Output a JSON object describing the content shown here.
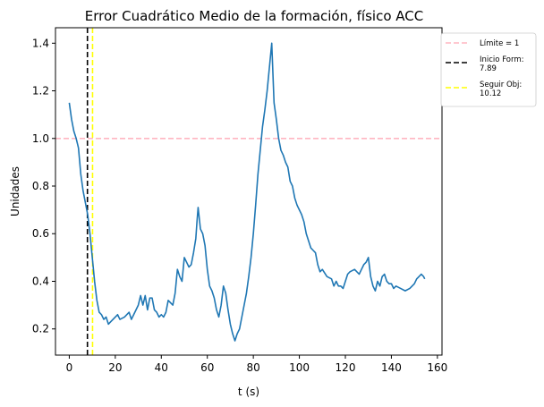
{
  "chart_data": {
    "type": "line",
    "title": "Error Cuadrático Medio de la formación, físico ACC",
    "xlabel": "t (s)",
    "ylabel": "Unidades",
    "xlim": [
      -6,
      162
    ],
    "ylim": [
      0.09,
      1.465
    ],
    "xticks": [
      0,
      20,
      40,
      60,
      80,
      100,
      120,
      140,
      160
    ],
    "yticks": [
      0.2,
      0.4,
      0.6,
      0.8,
      1.0,
      1.2,
      1.4
    ],
    "xtick_labels": [
      "0",
      "20",
      "40",
      "60",
      "80",
      "100",
      "120",
      "140",
      "160"
    ],
    "ytick_labels": [
      "0.2",
      "0.4",
      "0.6",
      "0.8",
      "1.0",
      "1.2",
      "1.4"
    ],
    "grid": false,
    "legend_position": "outside-right-top",
    "series": [
      {
        "color": "#1f77b4",
        "points": [
          [
            0,
            1.15
          ],
          [
            1,
            1.08
          ],
          [
            2,
            1.03
          ],
          [
            3,
            1.0
          ],
          [
            4,
            0.96
          ],
          [
            5,
            0.85
          ],
          [
            6,
            0.78
          ],
          [
            7,
            0.73
          ],
          [
            8,
            0.68
          ],
          [
            9,
            0.6
          ],
          [
            10,
            0.5
          ],
          [
            11,
            0.4
          ],
          [
            12,
            0.32
          ],
          [
            13,
            0.27
          ],
          [
            14,
            0.26
          ],
          [
            15,
            0.24
          ],
          [
            16,
            0.25
          ],
          [
            17,
            0.22
          ],
          [
            18,
            0.23
          ],
          [
            19,
            0.24
          ],
          [
            20,
            0.25
          ],
          [
            21,
            0.26
          ],
          [
            22,
            0.24
          ],
          [
            24,
            0.25
          ],
          [
            26,
            0.27
          ],
          [
            27,
            0.24
          ],
          [
            28,
            0.26
          ],
          [
            30,
            0.3
          ],
          [
            31,
            0.34
          ],
          [
            32,
            0.3
          ],
          [
            33,
            0.34
          ],
          [
            34,
            0.28
          ],
          [
            35,
            0.33
          ],
          [
            36,
            0.33
          ],
          [
            37,
            0.28
          ],
          [
            38,
            0.27
          ],
          [
            39,
            0.25
          ],
          [
            40,
            0.26
          ],
          [
            41,
            0.25
          ],
          [
            42,
            0.27
          ],
          [
            43,
            0.32
          ],
          [
            44,
            0.31
          ],
          [
            45,
            0.3
          ],
          [
            46,
            0.35
          ],
          [
            47,
            0.45
          ],
          [
            48,
            0.42
          ],
          [
            49,
            0.4
          ],
          [
            50,
            0.5
          ],
          [
            51,
            0.48
          ],
          [
            52,
            0.46
          ],
          [
            53,
            0.47
          ],
          [
            54,
            0.52
          ],
          [
            55,
            0.58
          ],
          [
            55.5,
            0.65
          ],
          [
            56,
            0.71
          ],
          [
            57,
            0.62
          ],
          [
            58,
            0.6
          ],
          [
            59,
            0.55
          ],
          [
            60,
            0.45
          ],
          [
            61,
            0.38
          ],
          [
            62,
            0.36
          ],
          [
            63,
            0.33
          ],
          [
            64,
            0.28
          ],
          [
            65,
            0.25
          ],
          [
            66,
            0.3
          ],
          [
            67,
            0.38
          ],
          [
            68,
            0.35
          ],
          [
            69,
            0.28
          ],
          [
            70,
            0.22
          ],
          [
            71,
            0.18
          ],
          [
            72,
            0.15
          ],
          [
            73,
            0.18
          ],
          [
            74,
            0.2
          ],
          [
            75,
            0.25
          ],
          [
            76,
            0.3
          ],
          [
            77,
            0.35
          ],
          [
            78,
            0.42
          ],
          [
            79,
            0.5
          ],
          [
            80,
            0.6
          ],
          [
            81,
            0.72
          ],
          [
            82,
            0.85
          ],
          [
            83,
            0.95
          ],
          [
            84,
            1.05
          ],
          [
            85,
            1.12
          ],
          [
            86,
            1.2
          ],
          [
            87,
            1.3
          ],
          [
            88,
            1.4
          ],
          [
            89,
            1.15
          ],
          [
            90,
            1.08
          ],
          [
            91,
            1.0
          ],
          [
            92,
            0.95
          ],
          [
            93,
            0.93
          ],
          [
            94,
            0.9
          ],
          [
            95,
            0.88
          ],
          [
            96,
            0.82
          ],
          [
            97,
            0.8
          ],
          [
            98,
            0.75
          ],
          [
            99,
            0.72
          ],
          [
            100,
            0.7
          ],
          [
            101,
            0.68
          ],
          [
            102,
            0.65
          ],
          [
            103,
            0.6
          ],
          [
            104,
            0.57
          ],
          [
            105,
            0.54
          ],
          [
            106,
            0.53
          ],
          [
            107,
            0.52
          ],
          [
            108,
            0.47
          ],
          [
            109,
            0.44
          ],
          [
            110,
            0.45
          ],
          [
            112,
            0.42
          ],
          [
            114,
            0.41
          ],
          [
            115,
            0.38
          ],
          [
            116,
            0.4
          ],
          [
            117,
            0.38
          ],
          [
            118,
            0.38
          ],
          [
            119,
            0.37
          ],
          [
            120,
            0.4
          ],
          [
            121,
            0.43
          ],
          [
            122,
            0.44
          ],
          [
            124,
            0.45
          ],
          [
            126,
            0.43
          ],
          [
            127,
            0.45
          ],
          [
            128,
            0.47
          ],
          [
            129,
            0.48
          ],
          [
            130,
            0.5
          ],
          [
            131,
            0.42
          ],
          [
            132,
            0.38
          ],
          [
            133,
            0.36
          ],
          [
            134,
            0.4
          ],
          [
            135,
            0.38
          ],
          [
            136,
            0.42
          ],
          [
            137,
            0.43
          ],
          [
            138,
            0.4
          ],
          [
            139,
            0.39
          ],
          [
            140,
            0.39
          ],
          [
            141,
            0.37
          ],
          [
            142,
            0.38
          ],
          [
            144,
            0.37
          ],
          [
            146,
            0.36
          ],
          [
            148,
            0.37
          ],
          [
            150,
            0.39
          ],
          [
            151,
            0.41
          ],
          [
            152,
            0.42
          ],
          [
            153,
            0.43
          ],
          [
            154,
            0.42
          ],
          [
            154.5,
            0.41
          ]
        ]
      }
    ],
    "reference_lines": [
      {
        "orientation": "horizontal",
        "value": 1.0,
        "color": "#ffb6c1",
        "style": "dashed",
        "label": "Límite = 1"
      },
      {
        "orientation": "vertical",
        "value": 7.89,
        "color": "#000000",
        "style": "dashed",
        "label": "Inicio Form:\n7.89"
      },
      {
        "orientation": "vertical",
        "value": 10.12,
        "color": "#ffff00",
        "style": "dashed",
        "label": "Seguir Obj:\n10.12"
      }
    ]
  }
}
